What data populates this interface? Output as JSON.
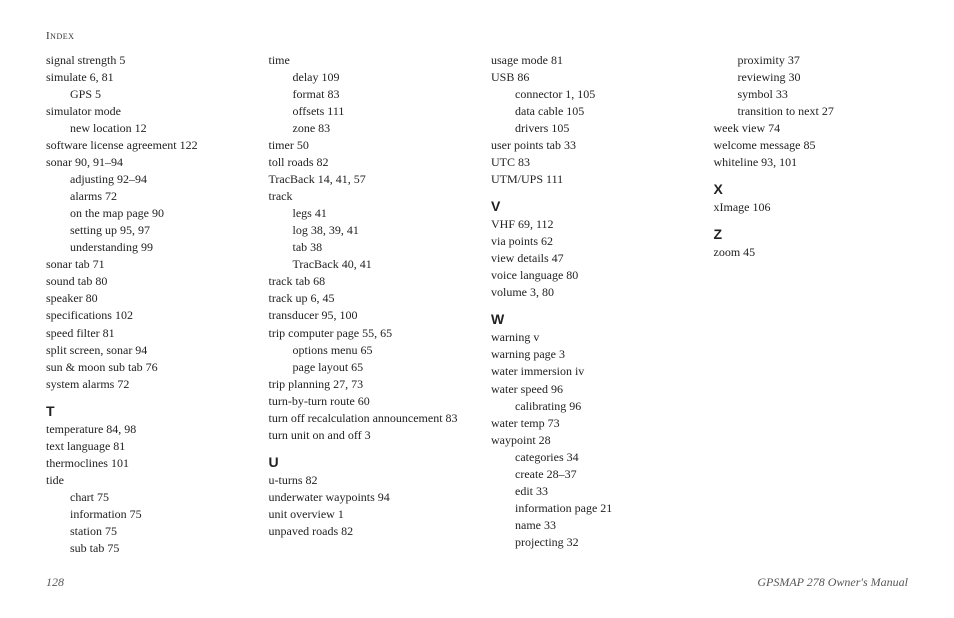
{
  "header": "Index",
  "page_number": "128",
  "manual_title": "GPSMAP 278 Owner's Manual",
  "columns": [
    {
      "items": [
        {
          "text": "signal strength  5",
          "level": 0
        },
        {
          "text": "simulate  6, 81",
          "level": 0
        },
        {
          "text": "GPS  5",
          "level": 1
        },
        {
          "text": "simulator mode",
          "level": 0
        },
        {
          "text": "new location  12",
          "level": 1
        },
        {
          "text": "software license agreement  122",
          "level": 0
        },
        {
          "text": "sonar  90, 91–94",
          "level": 0
        },
        {
          "text": "adjusting  92–94",
          "level": 1
        },
        {
          "text": "alarms  72",
          "level": 1
        },
        {
          "text": "on the map page  90",
          "level": 1
        },
        {
          "text": "setting up  95, 97",
          "level": 1
        },
        {
          "text": "understanding  99",
          "level": 1
        },
        {
          "text": "sonar tab  71",
          "level": 0
        },
        {
          "text": "sound tab  80",
          "level": 0
        },
        {
          "text": "speaker  80",
          "level": 0
        },
        {
          "text": "specifications  102",
          "level": 0
        },
        {
          "text": "speed filter  81",
          "level": 0
        },
        {
          "text": "split screen, sonar  94",
          "level": 0
        },
        {
          "text": "sun & moon sub tab  76",
          "level": 0
        },
        {
          "text": "system alarms  72",
          "level": 0
        },
        {
          "section": "T"
        },
        {
          "text": "temperature  84, 98",
          "level": 0
        },
        {
          "text": "text language  81",
          "level": 0
        },
        {
          "text": "thermoclines  101",
          "level": 0
        },
        {
          "text": "tide",
          "level": 0
        },
        {
          "text": "chart  75",
          "level": 1
        },
        {
          "text": "information  75",
          "level": 1
        },
        {
          "text": "station  75",
          "level": 1
        },
        {
          "text": "sub tab  75",
          "level": 1
        }
      ]
    },
    {
      "items": [
        {
          "text": "time",
          "level": 0
        },
        {
          "text": "delay  109",
          "level": 1
        },
        {
          "text": "format  83",
          "level": 1
        },
        {
          "text": "offsets  111",
          "level": 1
        },
        {
          "text": "zone  83",
          "level": 1
        },
        {
          "text": "timer  50",
          "level": 0
        },
        {
          "text": "toll roads  82",
          "level": 0
        },
        {
          "text": "TracBack  14, 41, 57",
          "level": 0
        },
        {
          "text": "track",
          "level": 0
        },
        {
          "text": "legs  41",
          "level": 1
        },
        {
          "text": "log  38, 39, 41",
          "level": 1
        },
        {
          "text": "tab  38",
          "level": 1
        },
        {
          "text": "TracBack  40, 41",
          "level": 1
        },
        {
          "text": "track tab  68",
          "level": 0
        },
        {
          "text": "track up  6, 45",
          "level": 0
        },
        {
          "text": "transducer  95, 100",
          "level": 0
        },
        {
          "text": "trip computer page  55, 65",
          "level": 0
        },
        {
          "text": "options menu  65",
          "level": 1
        },
        {
          "text": "page layout  65",
          "level": 1
        },
        {
          "text": "trip planning  27, 73",
          "level": 0
        },
        {
          "text": "turn-by-turn route  60",
          "level": 0
        },
        {
          "text": "turn off recalculation announcement  83",
          "level": 0
        },
        {
          "text": "turn unit on and off  3",
          "level": 0
        },
        {
          "section": "U"
        },
        {
          "text": "u-turns  82",
          "level": 0
        },
        {
          "text": "underwater waypoints  94",
          "level": 0
        },
        {
          "text": "unit overview  1",
          "level": 0
        },
        {
          "text": "unpaved roads  82",
          "level": 0
        }
      ]
    },
    {
      "items": [
        {
          "text": "usage mode  81",
          "level": 0
        },
        {
          "text": "USB  86",
          "level": 0
        },
        {
          "text": "connector  1, 105",
          "level": 1
        },
        {
          "text": "data cable  105",
          "level": 1
        },
        {
          "text": "drivers  105",
          "level": 1
        },
        {
          "text": "user points tab  33",
          "level": 0
        },
        {
          "text": "UTC  83",
          "level": 0
        },
        {
          "text": "UTM/UPS  111",
          "level": 0
        },
        {
          "section": "V"
        },
        {
          "text": "VHF  69, 112",
          "level": 0
        },
        {
          "text": "via points  62",
          "level": 0
        },
        {
          "text": "view details  47",
          "level": 0
        },
        {
          "text": "voice language  80",
          "level": 0
        },
        {
          "text": "volume  3, 80",
          "level": 0
        },
        {
          "section": "W"
        },
        {
          "text": "warning  v",
          "level": 0
        },
        {
          "text": "warning page  3",
          "level": 0
        },
        {
          "text": "water immersion  iv",
          "level": 0
        },
        {
          "text": "water speed  96",
          "level": 0
        },
        {
          "text": "calibrating  96",
          "level": 1
        },
        {
          "text": "water temp  73",
          "level": 0
        },
        {
          "text": "waypoint  28",
          "level": 0
        },
        {
          "text": "categories  34",
          "level": 1
        },
        {
          "text": "create  28–37",
          "level": 1
        },
        {
          "text": "edit  33",
          "level": 1
        },
        {
          "text": "information page  21",
          "level": 1
        },
        {
          "text": "name  33",
          "level": 1
        },
        {
          "text": "projecting  32",
          "level": 1
        }
      ]
    },
    {
      "items": [
        {
          "text": "proximity  37",
          "level": 1
        },
        {
          "text": "reviewing  30",
          "level": 1
        },
        {
          "text": "symbol  33",
          "level": 1
        },
        {
          "text": "transition to next  27",
          "level": 1
        },
        {
          "text": "week view  74",
          "level": 0
        },
        {
          "text": "welcome message  85",
          "level": 0
        },
        {
          "text": "whiteline  93, 101",
          "level": 0
        },
        {
          "section": "X"
        },
        {
          "text": "xImage  106",
          "level": 0
        },
        {
          "section": "Z"
        },
        {
          "text": "zoom  45",
          "level": 0
        }
      ]
    }
  ]
}
